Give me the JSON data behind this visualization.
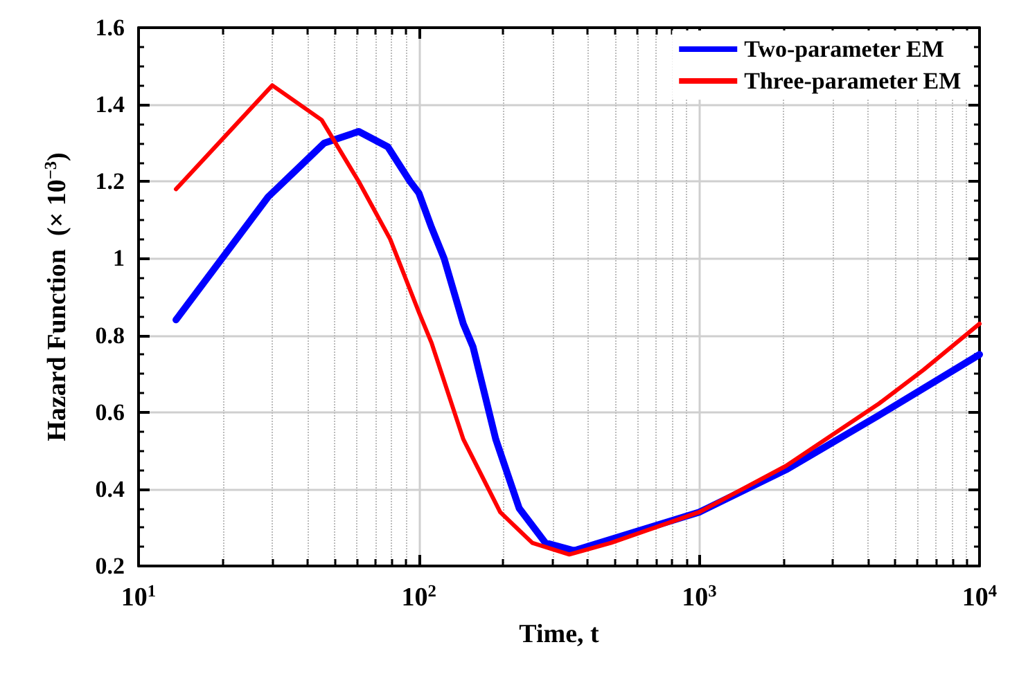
{
  "chart_data": {
    "type": "line",
    "xlabel": "Time, t",
    "ylabel": "Hazard Function  (× 10$^{−3}$)",
    "log": "x",
    "xlim": [
      10,
      10000
    ],
    "xticks": [
      {
        "value": 10,
        "label": "10$^{1}$"
      },
      {
        "value": 100,
        "label": "10$^{2}$"
      },
      {
        "value": 1000,
        "label": "10$^{3}$"
      },
      {
        "value": 10000,
        "label": "10$^{4}$"
      }
    ],
    "ylim": [
      0.2,
      1.6
    ],
    "yticks": [
      0.2,
      0.4,
      0.6,
      0.8,
      1,
      1.2,
      1.4,
      1.6
    ],
    "grid": true,
    "legend": "top right",
    "line_style": "solid",
    "marker": "none",
    "series": [
      {
        "name": "Two-parameter EM",
        "color": "#0000ff",
        "x": [
          13.6,
          29,
          46,
          61,
          77.5,
          93,
          100,
          111,
          123,
          144,
          156,
          188,
          228,
          283,
          358,
          1000,
          2037,
          4335,
          10000
        ],
        "values": [
          0.84,
          1.16,
          1.3,
          1.33,
          1.29,
          1.2,
          1.17,
          1.08,
          1.0,
          0.83,
          0.77,
          0.53,
          0.35,
          0.26,
          0.24,
          0.34,
          0.45,
          0.59,
          0.75
        ]
      },
      {
        "name": "Three-parameter EM",
        "color": "#ff0000",
        "x": [
          13.6,
          30,
          45,
          61,
          79,
          100,
          111,
          144,
          195,
          254,
          344,
          484,
          1000,
          2037,
          4335,
          6310,
          10000
        ],
        "values": [
          1.18,
          1.45,
          1.36,
          1.2,
          1.05,
          0.86,
          0.78,
          0.53,
          0.34,
          0.26,
          0.23,
          0.26,
          0.34,
          0.46,
          0.62,
          0.71,
          0.83
        ]
      }
    ]
  }
}
